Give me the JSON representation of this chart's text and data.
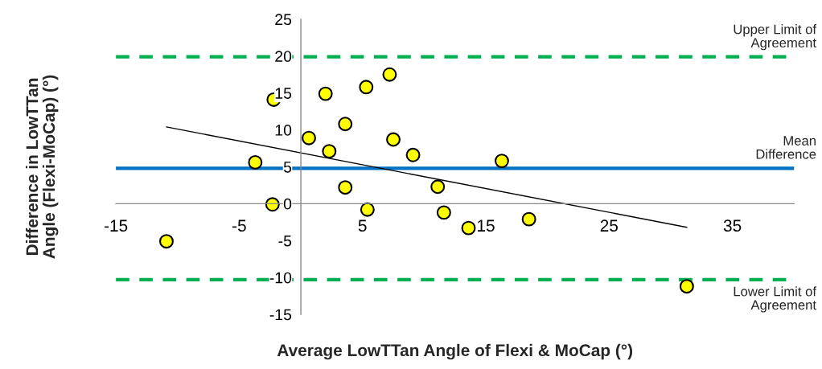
{
  "chart_data": {
    "type": "scatter",
    "xlabel": "Average LowTTan Angle of Flexi & MoCap (°)",
    "ylabel": "Difference in LowTTan\nAngle (Flexi-MoCap) (°)",
    "series": [
      {
        "color": "#ffff00",
        "marker": "circle",
        "x": [
          -10.9,
          -2.2,
          -3.7,
          -2.3,
          0.65,
          2.0,
          2.3,
          3.6,
          3.6,
          5.3,
          5.4,
          7.2,
          7.5,
          9.1,
          11.1,
          11.6,
          13.6,
          16.3,
          18.5,
          31.3
        ],
        "values": [
          -5.1,
          14.1,
          5.6,
          -0.1,
          8.9,
          14.9,
          7.1,
          10.8,
          2.2,
          15.8,
          -0.8,
          17.5,
          8.7,
          6.6,
          2.3,
          -1.2,
          -3.3,
          5.8,
          -2.1,
          -11.2
        ]
      },
      {
        "type": "line",
        "color": "#000000",
        "marker": "none",
        "line_style": "solid",
        "x": [
          -10.9,
          31.3
        ],
        "values": [
          10.4,
          -3.2
        ]
      }
    ],
    "ref_lines": [
      {
        "axis": "y",
        "value": 19.9,
        "label": "Upper Limit of\nAgreement",
        "color": "#00b050",
        "line_style": "dashed"
      },
      {
        "axis": "y",
        "value": 4.8,
        "label": "Mean\nDifference",
        "color": "#0070c0",
        "line_style": "solid"
      },
      {
        "axis": "y",
        "value": -10.3,
        "label": "Lower Limit of\nAgreement",
        "color": "#00b050",
        "line_style": "dashed"
      }
    ],
    "xlim": [
      -15,
      40
    ],
    "ylim": [
      -15,
      25
    ],
    "xticks": [
      -15,
      -5,
      5,
      15,
      25,
      35
    ],
    "yticks": [
      -15,
      -10,
      -5,
      0,
      5,
      10,
      15,
      20,
      25
    ],
    "grid": false,
    "legend": false
  }
}
